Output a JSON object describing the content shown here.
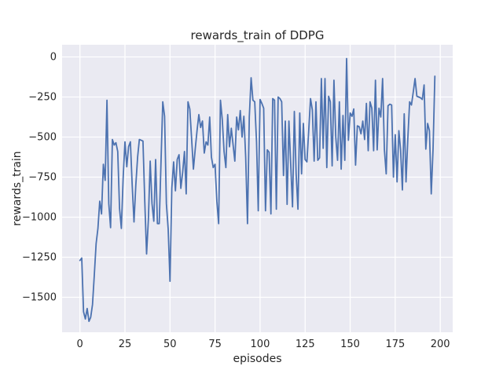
{
  "chart_data": {
    "type": "line",
    "title": "rewards_train of DDPG",
    "xlabel": "episodes",
    "ylabel": "rewards_train",
    "xticks": [
      0,
      25,
      50,
      75,
      100,
      125,
      150,
      175,
      200
    ],
    "yticks": [
      0,
      -250,
      -500,
      -750,
      -1000,
      -1250,
      -1500
    ],
    "xlim": [
      -9.9,
      206.9
    ],
    "ylim": [
      -1718,
      76
    ],
    "grid": true,
    "legend": null,
    "style": {
      "fig_bg": "#FFFFFF",
      "axes_bg": "#EAEAF2",
      "grid_color": "#FFFFFF",
      "line_color": "#4C72B0",
      "text_color": "#262626",
      "line_width": 1.8
    },
    "series": [
      {
        "name": "rewards_train",
        "x_start": 0,
        "x_step": 1,
        "values": [
          -1270,
          -1255,
          -1590,
          -1635,
          -1570,
          -1650,
          -1625,
          -1545,
          -1360,
          -1165,
          -1070,
          -900,
          -980,
          -670,
          -770,
          -270,
          -915,
          -1065,
          -515,
          -550,
          -535,
          -590,
          -945,
          -1070,
          -755,
          -530,
          -685,
          -560,
          -530,
          -800,
          -1030,
          -800,
          -625,
          -515,
          -520,
          -525,
          -900,
          -1230,
          -1015,
          -650,
          -915,
          -1025,
          -640,
          -1040,
          -1040,
          -650,
          -280,
          -370,
          -915,
          -1075,
          -1400,
          -820,
          -655,
          -835,
          -640,
          -610,
          -820,
          -720,
          -590,
          -855,
          -280,
          -325,
          -510,
          -700,
          -575,
          -460,
          -360,
          -440,
          -400,
          -600,
          -530,
          -550,
          -375,
          -625,
          -690,
          -670,
          -900,
          -1040,
          -270,
          -390,
          -590,
          -690,
          -360,
          -560,
          -445,
          -550,
          -650,
          -375,
          -455,
          -335,
          -500,
          -370,
          -625,
          -1040,
          -375,
          -130,
          -270,
          -280,
          -530,
          -960,
          -265,
          -290,
          -320,
          -960,
          -580,
          -595,
          -980,
          -260,
          -270,
          -950,
          -250,
          -260,
          -280,
          -740,
          -400,
          -920,
          -400,
          -670,
          -935,
          -340,
          -730,
          -950,
          -350,
          -730,
          -415,
          -640,
          -655,
          -460,
          -260,
          -330,
          -650,
          -280,
          -645,
          -630,
          -135,
          -570,
          -135,
          -690,
          -245,
          -280,
          -680,
          -145,
          -500,
          -645,
          -280,
          -700,
          -365,
          -645,
          -10,
          -520,
          -350,
          -370,
          -325,
          -675,
          -430,
          -435,
          -480,
          -400,
          -515,
          -290,
          -585,
          -280,
          -320,
          -585,
          -145,
          -580,
          -320,
          -375,
          -135,
          -580,
          -730,
          -305,
          -295,
          -300,
          -750,
          -485,
          -780,
          -460,
          -580,
          -830,
          -355,
          -780,
          -510,
          -280,
          -300,
          -220,
          -135,
          -245,
          -250,
          -255,
          -265,
          -175,
          -575,
          -415,
          -460,
          -855,
          -575,
          -120
        ]
      }
    ]
  }
}
